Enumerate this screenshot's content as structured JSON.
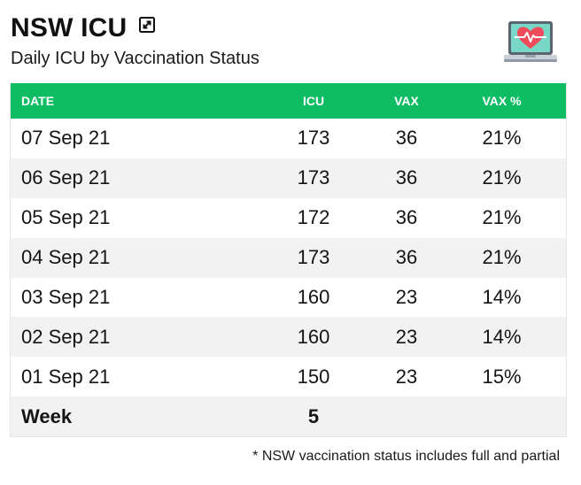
{
  "header": {
    "title": "NSW ICU",
    "subtitle": "Daily ICU by Vaccination Status",
    "expand_icon": "expand-icon",
    "logo_icon": "heart-monitor-laptop-icon"
  },
  "table": {
    "columns": [
      "DATE",
      "ICU",
      "VAX",
      "VAX %"
    ],
    "rows": [
      {
        "date": "07 Sep 21",
        "icu": "173",
        "vax": "36",
        "pct": "21%"
      },
      {
        "date": "06 Sep 21",
        "icu": "173",
        "vax": "36",
        "pct": "21%"
      },
      {
        "date": "05 Sep 21",
        "icu": "172",
        "vax": "36",
        "pct": "21%"
      },
      {
        "date": "04 Sep 21",
        "icu": "173",
        "vax": "36",
        "pct": "21%"
      },
      {
        "date": "03 Sep 21",
        "icu": "160",
        "vax": "23",
        "pct": "14%"
      },
      {
        "date": "02 Sep 21",
        "icu": "160",
        "vax": "23",
        "pct": "14%"
      },
      {
        "date": "01 Sep 21",
        "icu": "150",
        "vax": "23",
        "pct": "15%"
      }
    ],
    "summary": {
      "label": "Week",
      "icu": "5"
    }
  },
  "footnote": "* NSW vaccination status includes full and partial",
  "colors": {
    "header_green": "#0dbc63",
    "alt_row": "#f2f2f2",
    "monitor_teal": "#79d7c7",
    "heart_red": "#ef4b5a"
  }
}
